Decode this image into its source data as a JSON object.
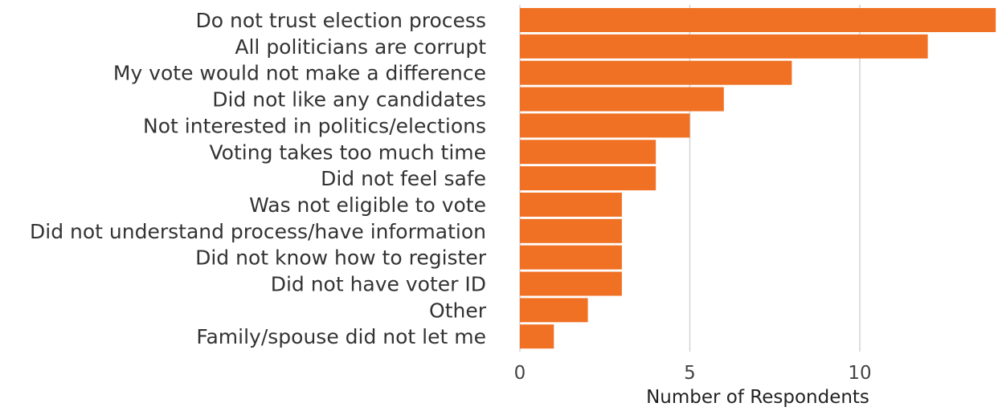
{
  "chart_data": {
    "type": "bar",
    "orientation": "horizontal",
    "categories": [
      "Do not trust election process",
      "All politicians are corrupt",
      "My vote would not make a difference",
      "Did not like any candidates",
      "Not interested in politics/elections",
      "Voting takes too much time",
      "Did not feel safe",
      "Was not eligible to vote",
      "Did not understand process/have information",
      "Did not know how to register",
      "Did not have voter ID",
      "Other",
      "Family/spouse did not let me"
    ],
    "values": [
      14,
      12,
      8,
      6,
      5,
      4,
      4,
      3,
      3,
      3,
      3,
      2,
      1
    ],
    "xlabel": "Number of Respondents",
    "ylabel": "",
    "xlim": [
      0,
      14
    ],
    "xticks": [
      0,
      5,
      10
    ],
    "grid": "vertical",
    "bar_color": "#f07024",
    "grid_color": "#d4d4d4"
  }
}
